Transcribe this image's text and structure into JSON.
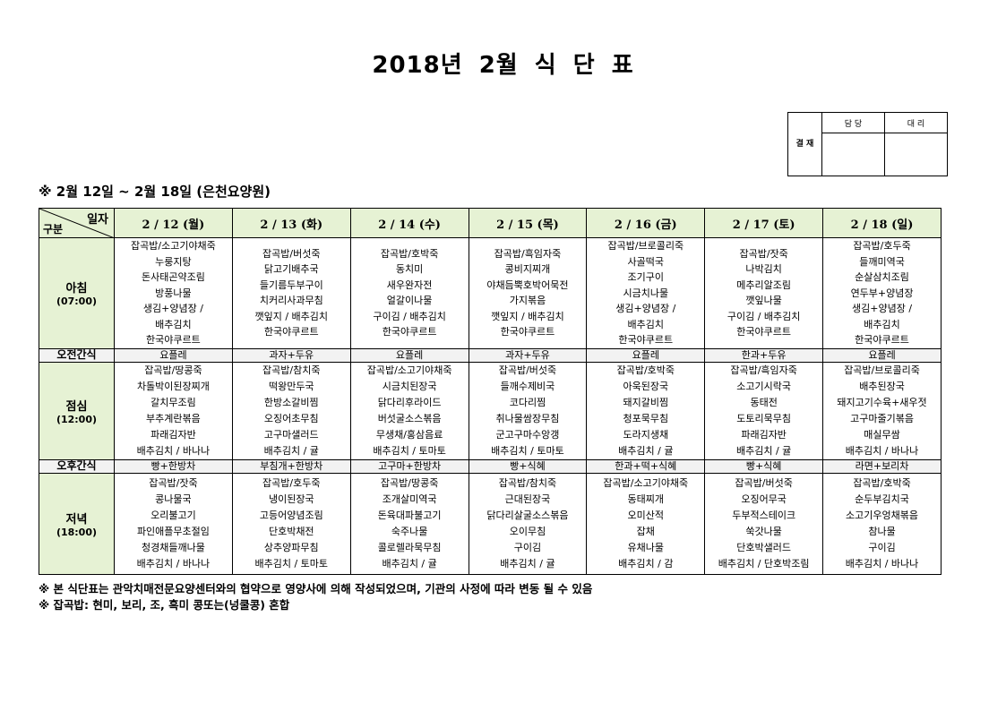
{
  "title": "2018년 2월 식 단 표",
  "approval": {
    "side_label": "결 재",
    "col1": "담 당",
    "col2": "대 리"
  },
  "subtitle": "※ 2월 12일 ~ 2월 18일 (은천요양원)",
  "corner": {
    "top": "일자",
    "bottom": "구분"
  },
  "labels": {
    "breakfast": "아침",
    "breakfast_time": "(07:00)",
    "am_snack": "오전간식",
    "lunch": "점심",
    "lunch_time": "(12:00)",
    "pm_snack": "오후간식",
    "dinner": "저녁",
    "dinner_time": "(18:00)"
  },
  "days": [
    {
      "date": "2 / 12 (월)",
      "breakfast": [
        "잡곡밥/소고기야채죽",
        "누룽지탕",
        "돈사태곤약조림",
        "방풍나물",
        "생김+양념장 /",
        "배추김치",
        "한국야쿠르트"
      ],
      "am_snack": "요플레",
      "lunch": [
        "잡곡밥/땅콩죽",
        "차돌박이된장찌개",
        "갈치무조림",
        "부추계란볶음",
        "파래김자반",
        "배추김치 / 바나나"
      ],
      "pm_snack": "빵+한방차",
      "dinner": [
        "잡곡밥/잣죽",
        "콩나물국",
        "오리불고기",
        "파인애플무초절임",
        "청경채들깨나물",
        "배추김치 / 바나나"
      ]
    },
    {
      "date": "2 / 13 (화)",
      "breakfast": [
        "잡곡밥/버섯죽",
        "닭고기배추국",
        "들기름두부구이",
        "치커리사과무침",
        "깻잎지 / 배추김치",
        "한국야쿠르트"
      ],
      "am_snack": "과자+두유",
      "lunch": [
        "잡곡밥/참치죽",
        "떡왕만두국",
        "한방소갈비찜",
        "오징어초무침",
        "고구마샐러드",
        "배추김치 / 귤"
      ],
      "pm_snack": "부침개+한방차",
      "dinner": [
        "잡곡밥/호두죽",
        "냉이된장국",
        "고등어양념조림",
        "단호박채전",
        "상추양파무침",
        "배추김치 / 토마토"
      ]
    },
    {
      "date": "2 / 14 (수)",
      "breakfast": [
        "잡곡밥/호박죽",
        "동치미",
        "새우완자전",
        "얼갈이나물",
        "구이김 / 배추김치",
        "한국야쿠르트"
      ],
      "am_snack": "요플레",
      "lunch": [
        "잡곡밥/소고기야채죽",
        "시금치된장국",
        "닭다리후라이드",
        "버섯굴소스볶음",
        "무생채/홍삼음료",
        "배추김치 / 토마토"
      ],
      "pm_snack": "고구마+한방차",
      "dinner": [
        "잡곡밥/땅콩죽",
        "조개살미역국",
        "돈육대파불고기",
        "숙주나물",
        "콜로렐라묵무침",
        "배추김치 / 귤"
      ]
    },
    {
      "date": "2 / 15 (목)",
      "breakfast": [
        "잡곡밥/흑임자죽",
        "콩비지찌개",
        "야채듬뿍호박어묵전",
        "가지볶음",
        "깻잎지 / 배추김치",
        "한국야쿠르트"
      ],
      "am_snack": "과자+두유",
      "lunch": [
        "잡곡밥/버섯죽",
        "들깨수제비국",
        "코다리찜",
        "취나물쌈장무침",
        "군고구마수앙갱",
        "배추김치 / 토마토"
      ],
      "pm_snack": "빵+식혜",
      "dinner": [
        "잡곡밥/참치죽",
        "근대된장국",
        "닭다리살굴소스볶음",
        "오이무침",
        "구이김",
        "배추김치 / 귤"
      ]
    },
    {
      "date": "2 / 16 (금)",
      "breakfast": [
        "잡곡밥/브로콜리죽",
        "사골떡국",
        "조기구이",
        "시금치나물",
        "생김+양념장 /",
        "배추김치",
        "한국야쿠르트"
      ],
      "am_snack": "요플레",
      "lunch": [
        "잡곡밥/호박죽",
        "아욱된장국",
        "돼지갈비찜",
        "청포묵무침",
        "도라지생채",
        "배추김치 / 귤"
      ],
      "pm_snack": "한과+떡+식혜",
      "dinner": [
        "잡곡밥/소고기야채죽",
        "동태찌개",
        "오미산적",
        "잡채",
        "유채나물",
        "배추김치 / 감"
      ]
    },
    {
      "date": "2 / 17 (토)",
      "breakfast": [
        "잡곡밥/잣죽",
        "나박김치",
        "메추리알조림",
        "깻잎나물",
        "구이김 / 배추김치",
        "한국야쿠르트"
      ],
      "am_snack": "한과+두유",
      "lunch": [
        "잡곡밥/흑임자죽",
        "소고기시락국",
        "동태전",
        "도토리묵무침",
        "파래김자반",
        "배추김치 / 귤"
      ],
      "pm_snack": "빵+식혜",
      "dinner": [
        "잡곡밥/버섯죽",
        "오징어무국",
        "두부적스테이크",
        "쑥갓나물",
        "단호박샐러드",
        "배추김치 / 단호박조림"
      ]
    },
    {
      "date": "2 / 18 (일)",
      "breakfast": [
        "잡곡밥/호두죽",
        "들깨미역국",
        "순살삼치조림",
        "연두부+양념장",
        "생김+양념장 /",
        "배추김치",
        "한국야쿠르트"
      ],
      "am_snack": "요플레",
      "lunch": [
        "잡곡밥/브로콜리죽",
        "배추된장국",
        "돼지고기수육+새우젓",
        "고구마줄기볶음",
        "매실무쌈",
        "배추김치 / 바나나"
      ],
      "pm_snack": "라면+보리차",
      "dinner": [
        "잡곡밥/호박죽",
        "순두부김치국",
        "소고기우엉채볶음",
        "참나물",
        "구이김",
        "배추김치 / 바나나"
      ]
    }
  ],
  "notes": [
    "※ 본 식단표는 관악치매전문요양센터와의 협약으로 영양사에 의해 작성되었으며, 기관의 사정에 따라 변동 될 수 있음",
    "※ 잡곡밥: 현미, 보리, 조, 흑미 콩또는(넝쿨콩) 혼합"
  ],
  "colors": {
    "header_bg": "#e6f2d4",
    "snack_bg": "#f2f2f2"
  }
}
